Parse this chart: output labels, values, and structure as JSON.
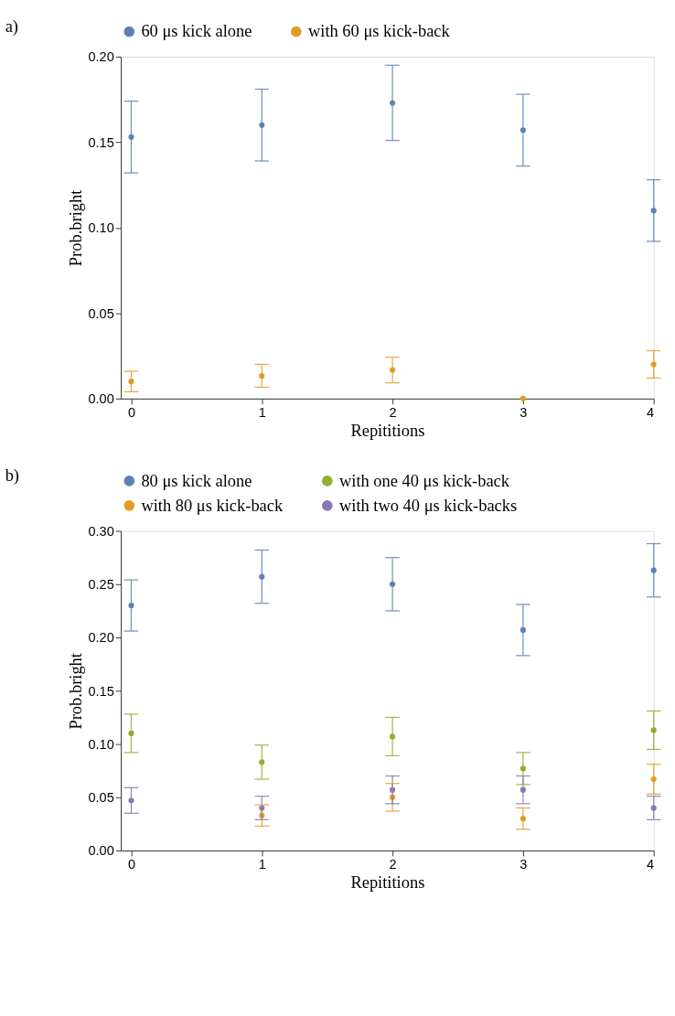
{
  "chart_data": [
    {
      "type": "scatter",
      "title": "a)",
      "xlabel": "Repititions",
      "ylabel": "Prob.bright",
      "x": [
        0,
        1,
        2,
        3,
        4
      ],
      "xlim": [
        -0.08,
        4.0
      ],
      "xticks": [
        0,
        1,
        2,
        3,
        4
      ],
      "ylim": [
        0.0,
        0.2
      ],
      "yticks": [
        {
          "value": 0.0,
          "label": "0.00"
        },
        {
          "value": 0.05,
          "label": "0.05"
        },
        {
          "value": 0.1,
          "label": "0.10"
        },
        {
          "value": 0.15,
          "label": "0.15"
        },
        {
          "value": 0.2,
          "label": "0.20"
        }
      ],
      "legend": "top",
      "grid": false,
      "marker": "circle",
      "series": [
        {
          "name": "60 μs kick alone",
          "color": "#5e81b5",
          "values": [
            0.153,
            0.16,
            0.173,
            0.157,
            0.11
          ],
          "errors": [
            0.021,
            0.021,
            0.022,
            0.021,
            0.018
          ]
        },
        {
          "name": "with 60 μs kick-back",
          "color": "#e19c24",
          "values": [
            0.01,
            0.0133,
            0.0167,
            0.0,
            0.02
          ],
          "errors": [
            0.006,
            0.0067,
            0.0075,
            null,
            0.008
          ]
        }
      ]
    },
    {
      "type": "scatter",
      "title": "b)",
      "xlabel": "Repititions",
      "ylabel": "Prob.bright",
      "x": [
        0,
        1,
        2,
        3,
        4
      ],
      "xlim": [
        -0.08,
        4.0
      ],
      "xticks": [
        0,
        1,
        2,
        3,
        4
      ],
      "ylim": [
        0.0,
        0.3
      ],
      "yticks": [
        {
          "value": 0.0,
          "label": "0.00"
        },
        {
          "value": 0.05,
          "label": "0.05"
        },
        {
          "value": 0.1,
          "label": "0.10"
        },
        {
          "value": 0.15,
          "label": "0.15"
        },
        {
          "value": 0.2,
          "label": "0.20"
        },
        {
          "value": 0.25,
          "label": "0.25"
        },
        {
          "value": 0.3,
          "label": "0.30"
        }
      ],
      "legend": "top",
      "grid": false,
      "marker": "circle",
      "series": [
        {
          "name": "80 μs kick alone",
          "color": "#5e81b5",
          "values": [
            0.23,
            0.257,
            0.25,
            0.207,
            0.263
          ],
          "errors": [
            0.024,
            0.025,
            0.025,
            0.024,
            0.025
          ]
        },
        {
          "name": "with 80 μs kick-back",
          "color": "#e19c24",
          "values": [
            null,
            0.033,
            0.05,
            0.03,
            0.067
          ],
          "errors": [
            null,
            0.01,
            0.013,
            0.01,
            0.014
          ]
        },
        {
          "name": "with one 40 μs kick-back",
          "color": "#8fb032",
          "values": [
            0.11,
            0.083,
            0.107,
            0.077,
            0.113
          ],
          "errors": [
            0.018,
            0.016,
            0.018,
            0.015,
            0.018
          ]
        },
        {
          "name": "with two 40 μs kick-backs",
          "color": "#8778b3",
          "values": [
            0.047,
            0.04,
            0.057,
            0.057,
            0.04
          ],
          "errors": [
            0.012,
            0.011,
            0.013,
            0.013,
            0.011
          ]
        }
      ]
    }
  ]
}
